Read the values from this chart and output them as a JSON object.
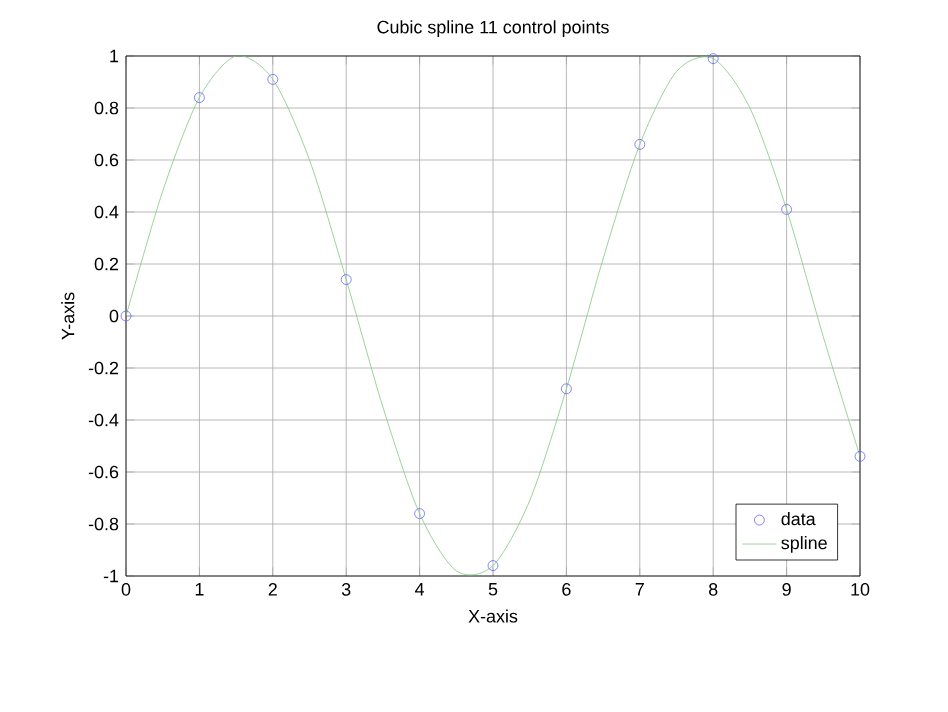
{
  "chart_data": {
    "type": "line",
    "title": "Cubic spline 11 control points",
    "xlabel": "X-axis",
    "ylabel": "Y-axis",
    "xlim": [
      0,
      10
    ],
    "ylim": [
      -1,
      1
    ],
    "xticks": [
      0,
      1,
      2,
      3,
      4,
      5,
      6,
      7,
      8,
      9,
      10
    ],
    "yticks": [
      -1,
      -0.8,
      -0.6,
      -0.4,
      -0.2,
      0,
      0.2,
      0.4,
      0.6,
      0.8,
      1
    ],
    "grid": true,
    "legend": "bottom right",
    "series": [
      {
        "name": "data",
        "type": "scatter",
        "marker": "circle",
        "color": "#6666ff",
        "x": [
          0,
          1,
          2,
          3,
          4,
          5,
          6,
          7,
          8,
          9,
          10
        ],
        "values": [
          0,
          0.84,
          0.91,
          0.14,
          -0.76,
          -0.96,
          -0.28,
          0.66,
          0.99,
          0.41,
          -0.54
        ]
      },
      {
        "name": "spline",
        "marker": "none",
        "color": "#80c880",
        "x": [
          0,
          0.5,
          1,
          1.5,
          2,
          2.5,
          3,
          3.5,
          4,
          4.5,
          5,
          5.5,
          6,
          6.5,
          7,
          7.5,
          8,
          8.5,
          9,
          9.5,
          10
        ],
        "values": [
          0,
          0.48,
          0.84,
          1.0,
          0.91,
          0.6,
          0.14,
          -0.35,
          -0.76,
          -0.98,
          -0.96,
          -0.71,
          -0.28,
          0.22,
          0.66,
          0.94,
          0.99,
          0.8,
          0.41,
          -0.08,
          -0.54
        ]
      }
    ]
  }
}
